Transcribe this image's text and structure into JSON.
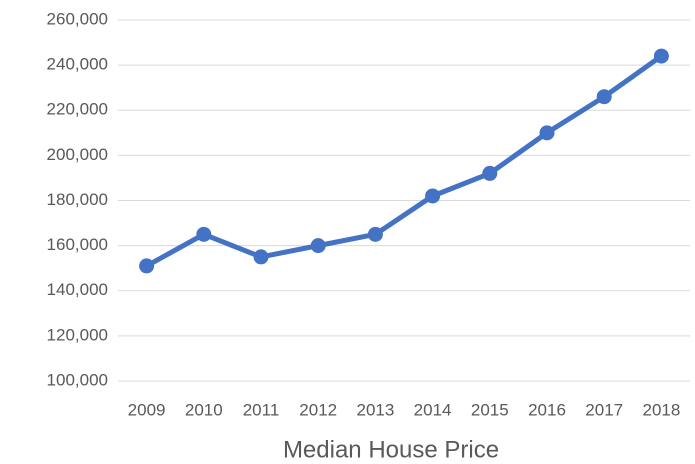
{
  "chart_data": {
    "type": "line",
    "title": "Median House Price",
    "categories": [
      "2009",
      "2010",
      "2011",
      "2012",
      "2013",
      "2014",
      "2015",
      "2016",
      "2017",
      "2018"
    ],
    "values": [
      151000,
      165000,
      155000,
      160000,
      165000,
      182000,
      192000,
      210000,
      226000,
      244000
    ],
    "color": "#4472c4",
    "ylim": [
      100000,
      260000
    ],
    "yticks": [
      {
        "value": 100000,
        "label": "100,000"
      },
      {
        "value": 120000,
        "label": "120,000"
      },
      {
        "value": 140000,
        "label": "140,000"
      },
      {
        "value": 160000,
        "label": "160,000"
      },
      {
        "value": 180000,
        "label": "180,000"
      },
      {
        "value": 200000,
        "label": "200,000"
      },
      {
        "value": 220000,
        "label": "220,000"
      },
      {
        "value": 240000,
        "label": "240,000"
      },
      {
        "value": 260000,
        "label": "260,000"
      }
    ],
    "grid": true
  }
}
